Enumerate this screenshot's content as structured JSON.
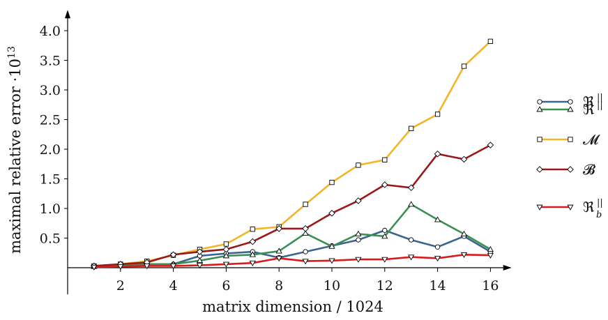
{
  "chart_data": {
    "type": "line",
    "xlabel": "matrix dimension / 1024",
    "ylabel_main": "maximal relative error ·10",
    "ylabel_exp": "13",
    "xlim": [
      0,
      16.8
    ],
    "ylim": [
      -0.45,
      4.35
    ],
    "xticks": [
      "2",
      "4",
      "6",
      "8",
      "10",
      "12",
      "14",
      "16"
    ],
    "yticks": [
      "0.5",
      "1.0",
      "1.5",
      "2.0",
      "2.5",
      "3.0",
      "3.5",
      "4.0"
    ],
    "x": [
      1,
      2,
      3,
      4,
      5,
      6,
      7,
      8,
      9,
      10,
      11,
      12,
      13,
      14,
      15,
      16
    ],
    "legend_position": "right",
    "series": [
      {
        "name": "ℜ",
        "sup": "||",
        "sub": "",
        "color": "#3a6590",
        "marker": "circle",
        "values": [
          0.02,
          0.04,
          0.06,
          0.06,
          0.2,
          0.24,
          0.27,
          0.17,
          0.27,
          0.37,
          0.47,
          0.63,
          0.47,
          0.35,
          0.53,
          0.27
        ]
      },
      {
        "name": "ℜ",
        "sup": "||",
        "sub": "",
        "color": "#3a8f55",
        "marker": "triangle-up",
        "values": [
          0.02,
          0.04,
          0.06,
          0.06,
          0.12,
          0.2,
          0.22,
          0.28,
          0.58,
          0.36,
          0.57,
          0.53,
          1.07,
          0.81,
          0.57,
          0.31
        ]
      },
      {
        "name": "𝓜",
        "sup": "",
        "sub": "",
        "color": "#f3b526",
        "marker": "square",
        "values": [
          0.03,
          0.06,
          0.11,
          0.21,
          0.31,
          0.4,
          0.65,
          0.69,
          1.07,
          1.44,
          1.73,
          1.82,
          2.35,
          2.59,
          3.4,
          3.82
        ]
      },
      {
        "name": "𝓑",
        "sup": "",
        "sub": "",
        "color": "#9b1818",
        "marker": "diamond",
        "values": [
          0.03,
          0.06,
          0.09,
          0.22,
          0.27,
          0.31,
          0.44,
          0.66,
          0.66,
          0.92,
          1.13,
          1.4,
          1.35,
          1.92,
          1.83,
          2.07
        ]
      },
      {
        "name": "ℜ",
        "sup": "||",
        "sub": "b",
        "color": "#d81c1c",
        "marker": "triangle-down",
        "values": [
          0.01,
          0.02,
          0.03,
          0.03,
          0.04,
          0.06,
          0.08,
          0.16,
          0.11,
          0.12,
          0.14,
          0.14,
          0.18,
          0.16,
          0.22,
          0.21
        ]
      }
    ]
  }
}
